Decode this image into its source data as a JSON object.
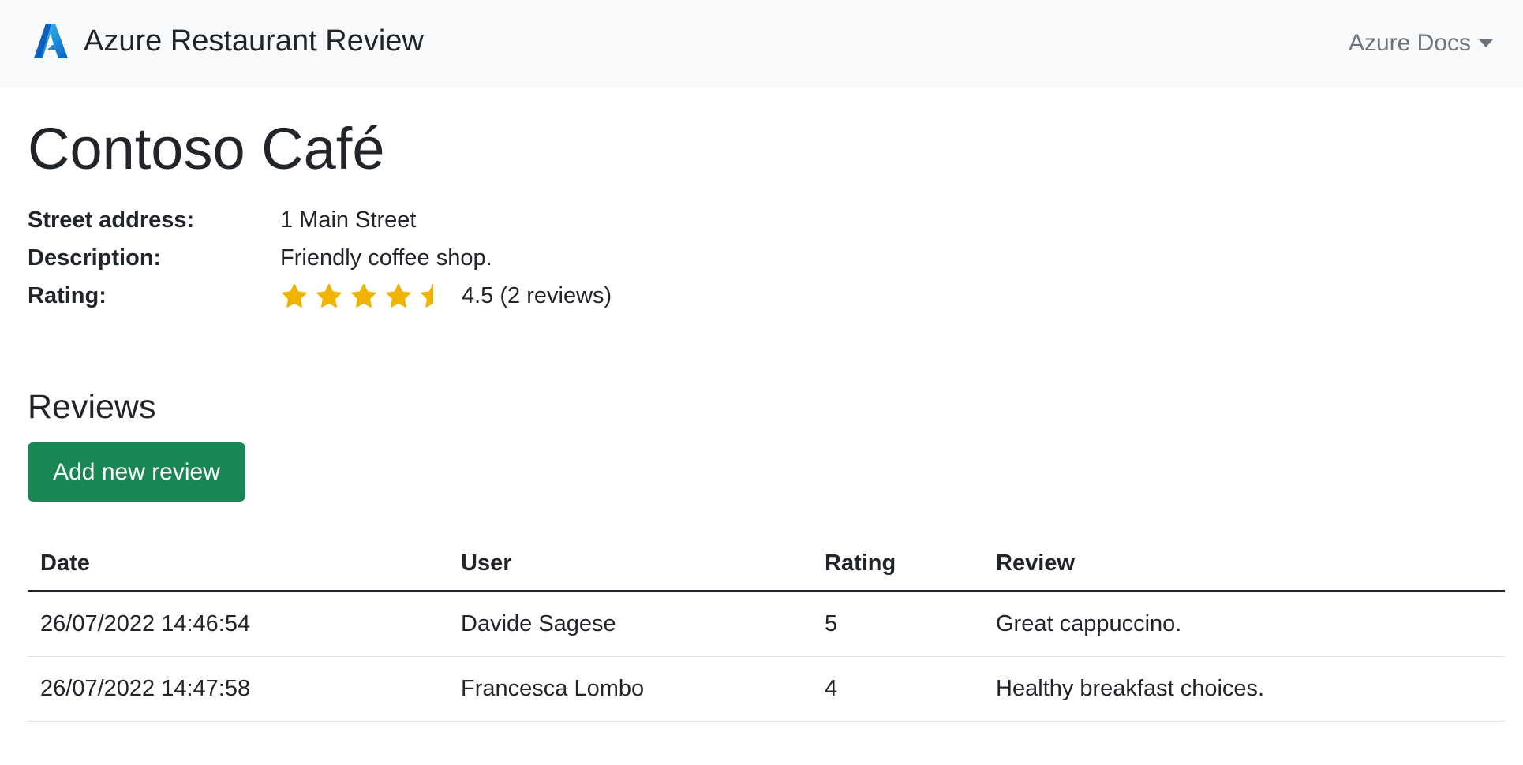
{
  "navbar": {
    "brand": "Azure Restaurant Review",
    "logo_icon": "azure-logo-icon",
    "docs_menu": "Azure Docs"
  },
  "restaurant": {
    "name": "Contoso Café",
    "fields": [
      {
        "label": "Street address:",
        "value": "1 Main Street"
      },
      {
        "label": "Description:",
        "value": "Friendly coffee shop."
      }
    ],
    "rating_label": "Rating:",
    "rating_value": 4.5,
    "rating_text": "4.5 (2 reviews)",
    "star_color": "#f0b400"
  },
  "reviews": {
    "heading": "Reviews",
    "add_button": "Add new review",
    "button_color": "#198754",
    "columns": [
      "Date",
      "User",
      "Rating",
      "Review"
    ],
    "rows": [
      [
        "26/07/2022 14:46:54",
        "Davide Sagese",
        "5",
        "Great cappuccino."
      ],
      [
        "26/07/2022 14:47:58",
        "Francesca Lombo",
        "4",
        "Healthy breakfast choices."
      ]
    ]
  }
}
